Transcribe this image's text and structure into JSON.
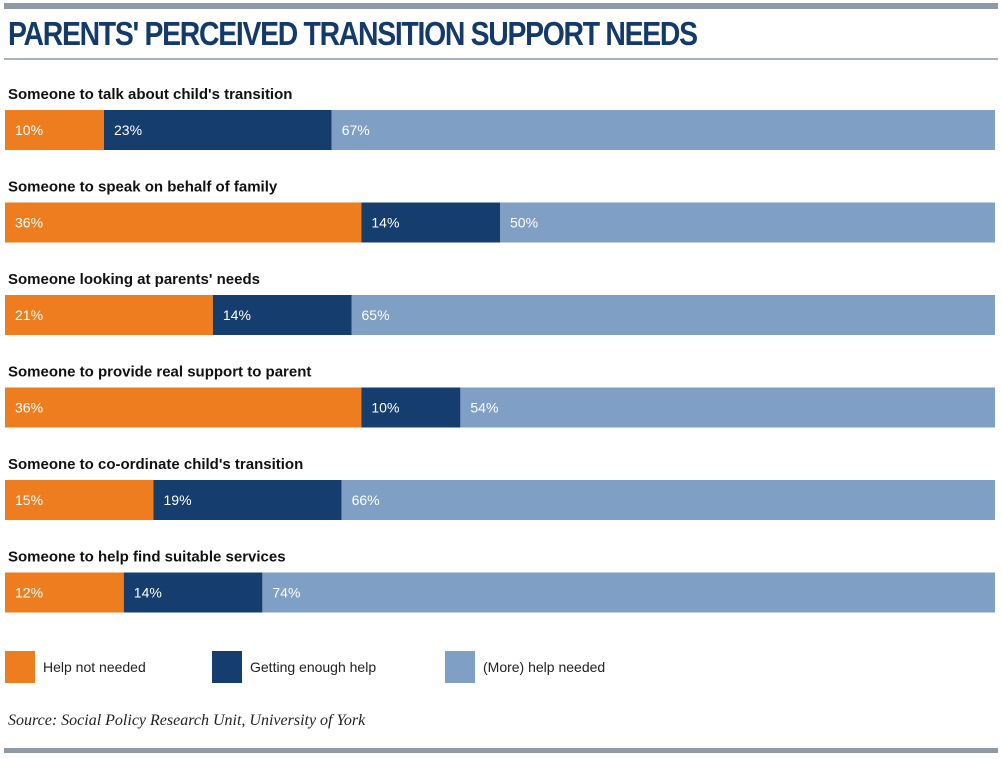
{
  "chart_data": {
    "type": "bar",
    "orientation": "horizontal",
    "stacked": true,
    "percent_stacked": true,
    "title": "PARENTS' PERCEIVED TRANSITION SUPPORT NEEDS",
    "categories": [
      "Someone to talk about child's transition",
      "Someone to speak on behalf of family",
      "Someone looking at parents' needs",
      "Someone to provide real support to parent",
      "Someone to co-ordinate child's transition",
      "Someone to help find suitable services"
    ],
    "series": [
      {
        "name": "Help not needed",
        "color": "#ee7d1f",
        "values": [
          10,
          36,
          21,
          36,
          15,
          12
        ]
      },
      {
        "name": "Getting enough help",
        "color": "#153e6e",
        "values": [
          23,
          14,
          14,
          10,
          19,
          14
        ]
      },
      {
        "name": "(More) help needed",
        "color": "#7f9fc5",
        "values": [
          67,
          50,
          65,
          54,
          66,
          74
        ]
      }
    ],
    "data_labels": [
      [
        "10%",
        "23%",
        "67%"
      ],
      [
        "36%",
        "14%",
        "50%"
      ],
      [
        "21%",
        "14%",
        "65%"
      ],
      [
        "36%",
        "10%",
        "54%"
      ],
      [
        "15%",
        "19%",
        "66%"
      ],
      [
        "12%",
        "14%",
        "74%"
      ]
    ],
    "xlim": [
      0,
      100
    ],
    "grid": false,
    "legend_position": "bottom-left"
  },
  "source": "Source: Social Policy Research Unit, University of York"
}
